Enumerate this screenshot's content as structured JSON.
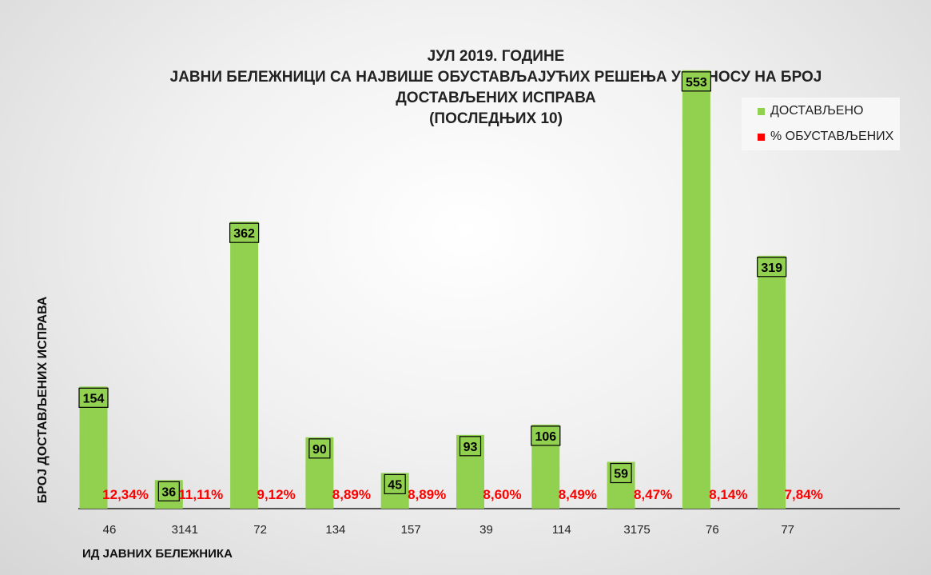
{
  "chart_data": {
    "type": "bar",
    "title_lines": [
      "ЈУЛ 2019. ГОДИНЕ",
      "ЈАВНИ БЕЛЕЖНИЦИ СА НАЈВИШЕ ОБУСТАВЉАЈУЋИХ РЕШЕЊА У ОДНОСУ НА БРОЈ",
      "ДОСТАВЉЕНИХ ИСПРАВА",
      "(ПОСЛЕДЊИХ 10)"
    ],
    "xlabel": "ИД ЈАВНИХ БЕЛЕЖНИКА",
    "ylabel": "БРОЈ ДОСТАВЉЕНИХ ИСПРАВА",
    "categories": [
      "46",
      "3141",
      "72",
      "134",
      "157",
      "39",
      "114",
      "3175",
      "76",
      "77"
    ],
    "series": [
      {
        "name": "ДОСТАВЉЕНО",
        "values": [
          154,
          36,
          362,
          90,
          45,
          93,
          106,
          59,
          553,
          319
        ],
        "labels": [
          "154",
          "36",
          "362",
          "90",
          "45",
          "93",
          "106",
          "59",
          "553",
          "319"
        ]
      },
      {
        "name": "% ОБУСТАВЉЕНИХ",
        "values": [
          12.34,
          11.11,
          9.12,
          8.89,
          8.89,
          8.6,
          8.49,
          8.47,
          8.14,
          7.84
        ],
        "labels": [
          "12,34%",
          "11,11%",
          "9,12%",
          "8,89%",
          "8,89%",
          "8,60%",
          "8,49%",
          "8,47%",
          "8,14%",
          "7,84%"
        ]
      }
    ],
    "ylim": [
      0,
      570
    ],
    "grid": false,
    "legend_position": "top-right",
    "colors": {
      "bars": "#92d050",
      "percent": "#ff0000",
      "label_text": "#000000"
    }
  }
}
